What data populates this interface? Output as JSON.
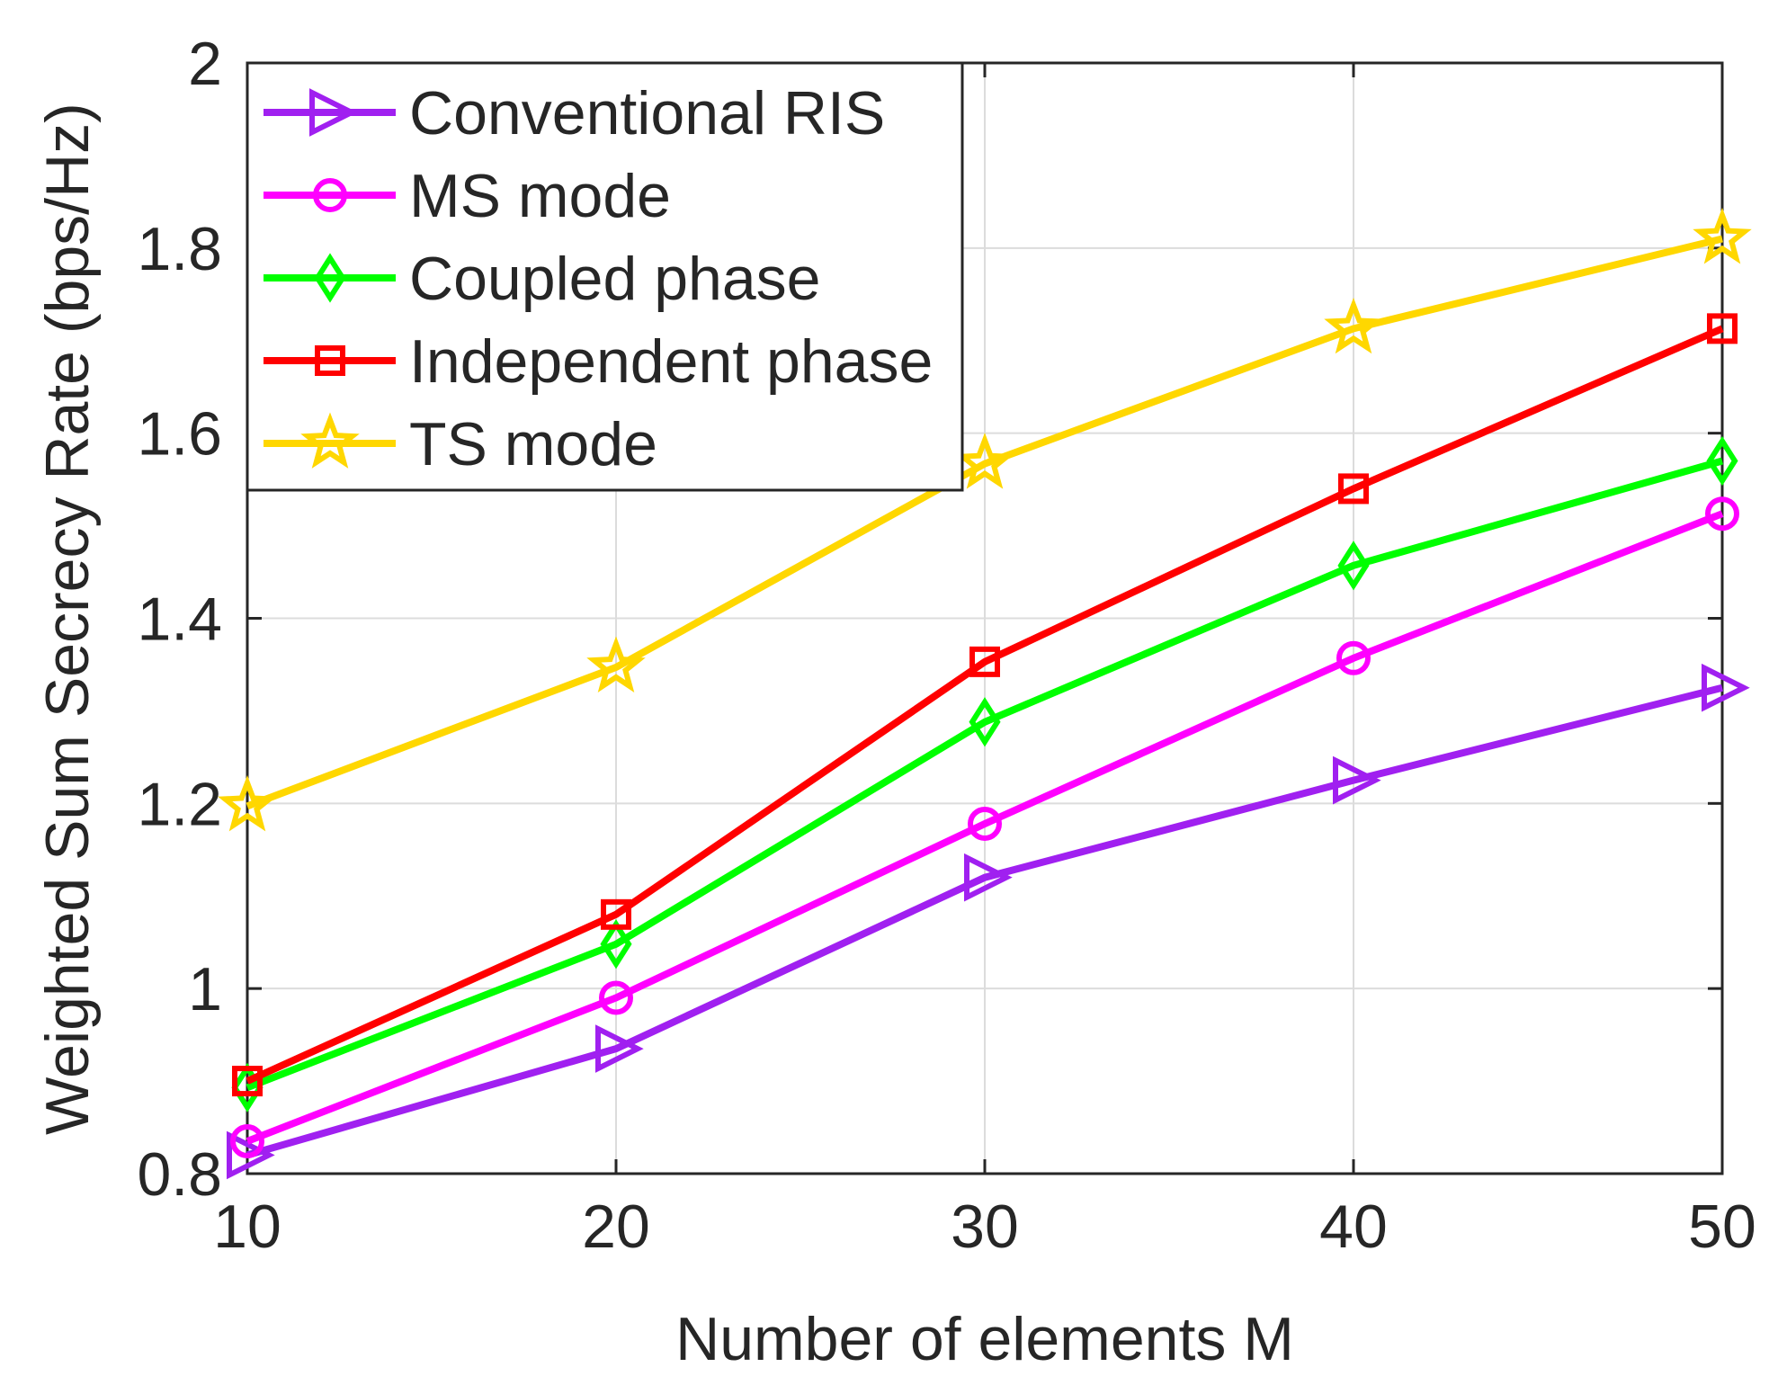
{
  "chart_data": {
    "type": "line",
    "title": "",
    "xlabel": "Number of elements M",
    "ylabel": "Weighted Sum Secrecy Rate (bps/Hz)",
    "x": [
      10,
      20,
      30,
      40,
      50
    ],
    "xlim": [
      10,
      50
    ],
    "ylim": [
      0.8,
      2
    ],
    "xticks": [
      10,
      20,
      30,
      40,
      50
    ],
    "xtick_labels": [
      "10",
      "20",
      "30",
      "40",
      "50"
    ],
    "yticks": [
      0.8,
      1,
      1.2,
      1.4,
      1.6,
      1.8,
      2
    ],
    "ytick_labels": [
      "0.8",
      "1",
      "1.2",
      "1.4",
      "1.6",
      "1.8",
      "2"
    ],
    "grid": true,
    "legend_position": "top-left",
    "series": [
      {
        "name": "Conventional RIS",
        "color": "#a020f0",
        "marker": "triangle-right",
        "values": [
          0.82,
          0.935,
          1.12,
          1.225,
          1.325
        ]
      },
      {
        "name": "MS mode",
        "color": "#ff00ff",
        "marker": "circle",
        "values": [
          0.835,
          0.99,
          1.178,
          1.357,
          1.513
        ]
      },
      {
        "name": "Coupled phase",
        "color": "#00ff00",
        "marker": "diamond",
        "values": [
          0.893,
          1.048,
          1.288,
          1.457,
          1.57
        ]
      },
      {
        "name": "Independent phase",
        "color": "#ff0000",
        "marker": "square",
        "values": [
          0.9,
          1.08,
          1.353,
          1.54,
          1.713
        ]
      },
      {
        "name": "TS mode",
        "color": "#ffd700",
        "marker": "star",
        "values": [
          1.197,
          1.347,
          1.567,
          1.713,
          1.81
        ]
      }
    ]
  }
}
